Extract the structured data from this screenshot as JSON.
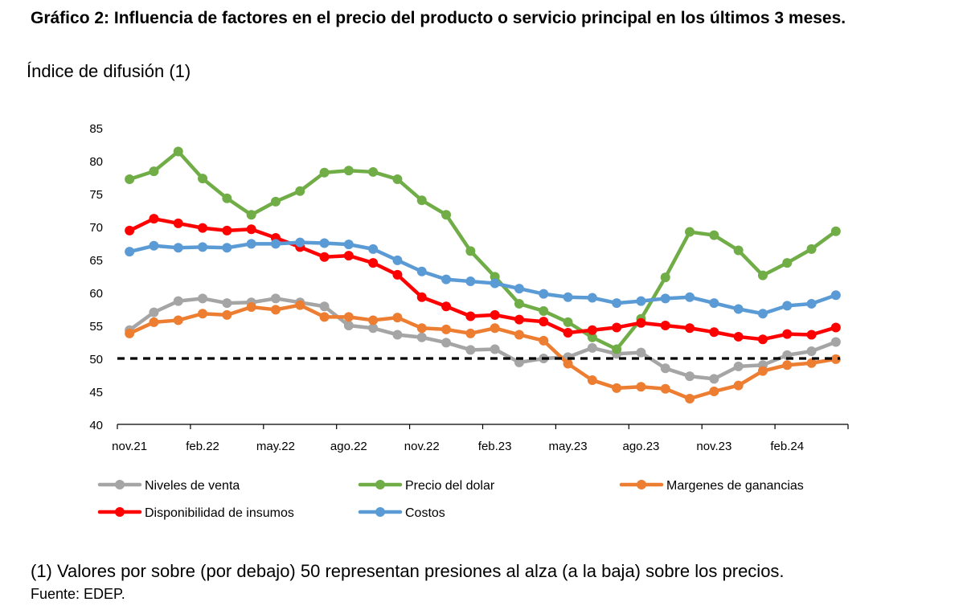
{
  "title": "Gráfico 2: Influencia de factores en el precio del producto o servicio principal en los últimos 3 meses.",
  "subtitle": "Índice de difusión (1)",
  "note": "(1) Valores por sobre (por debajo) 50 representan presiones al alza (a la baja) sobre los precios.",
  "source": "Fuente: EDEP.",
  "chart_data": {
    "type": "line",
    "title": "Gráfico 2: Influencia de factores en el precio del producto o servicio principal en los últimos 3 meses.",
    "ylabel": "Índice de difusión (1)",
    "xlabel": "",
    "ylim": [
      40,
      85
    ],
    "yticks": [
      40,
      45,
      50,
      55,
      60,
      65,
      70,
      75,
      80,
      85
    ],
    "x": [
      "nov.21",
      "dic.21",
      "ene.22",
      "feb.22",
      "mar.22",
      "abr.22",
      "may.22",
      "jun.22",
      "jul.22",
      "ago.22",
      "sep.22",
      "oct.22",
      "nov.22",
      "dic.22",
      "ene.23",
      "feb.23",
      "mar.23",
      "abr.23",
      "may.23",
      "jun.23",
      "jul.23",
      "ago.23",
      "sep.23",
      "oct.23",
      "nov.23",
      "dic.23",
      "ene.24",
      "feb.24",
      "mar.24",
      "abr.24"
    ],
    "xtick_labels": [
      {
        "index": 0,
        "label": "nov.21"
      },
      {
        "index": 3,
        "label": "feb.22"
      },
      {
        "index": 6,
        "label": "may.22"
      },
      {
        "index": 9,
        "label": "ago.22"
      },
      {
        "index": 12,
        "label": "nov.22"
      },
      {
        "index": 15,
        "label": "feb.23"
      },
      {
        "index": 18,
        "label": "may.23"
      },
      {
        "index": 21,
        "label": "ago.23"
      },
      {
        "index": 24,
        "label": "nov.23"
      },
      {
        "index": 27,
        "label": "feb.24"
      }
    ],
    "reference_line": {
      "value": 50,
      "style": "dashed",
      "color": "#000000"
    },
    "grid": false,
    "legend_position": "bottom",
    "series": [
      {
        "name": "Niveles de venta",
        "color": "#a5a5a5",
        "values": [
          54.3,
          57.0,
          58.7,
          59.1,
          58.4,
          58.5,
          59.1,
          58.5,
          57.9,
          55.0,
          54.6,
          53.6,
          53.2,
          52.4,
          51.3,
          51.4,
          49.4,
          50.0,
          50.2,
          51.6,
          50.7,
          50.9,
          48.5,
          47.3,
          46.9,
          48.8,
          49.0,
          50.5,
          51.1,
          52.5
        ]
      },
      {
        "name": "Precio del dolar",
        "color": "#70ad47",
        "values": [
          77.2,
          78.4,
          81.4,
          77.3,
          74.3,
          71.8,
          73.8,
          75.4,
          78.2,
          78.5,
          78.3,
          77.2,
          74.0,
          71.8,
          66.3,
          62.4,
          58.3,
          57.2,
          55.5,
          53.2,
          51.4,
          56.0,
          62.3,
          69.2,
          68.7,
          66.4,
          62.6,
          64.5,
          66.6,
          69.3
        ]
      },
      {
        "name": "Margenes de ganancias",
        "color": "#ed7d31",
        "values": [
          53.8,
          55.5,
          55.8,
          56.8,
          56.6,
          57.8,
          57.4,
          58.1,
          56.3,
          56.3,
          55.8,
          56.2,
          54.6,
          54.4,
          53.8,
          54.6,
          53.6,
          52.7,
          49.2,
          46.7,
          45.5,
          45.7,
          45.4,
          43.9,
          45.0,
          45.9,
          48.1,
          49.0,
          49.3,
          49.9
        ]
      },
      {
        "name": "Disponibilidad de insumos",
        "color": "#ff0000",
        "values": [
          69.4,
          71.2,
          70.5,
          69.8,
          69.4,
          69.6,
          68.3,
          66.9,
          65.4,
          65.6,
          64.5,
          62.7,
          59.3,
          57.9,
          56.4,
          56.6,
          55.9,
          55.6,
          53.9,
          54.3,
          54.7,
          55.4,
          55.0,
          54.6,
          54.0,
          53.3,
          52.9,
          53.7,
          53.6,
          54.7
        ]
      },
      {
        "name": "Costos",
        "color": "#5b9bd5",
        "values": [
          66.2,
          67.1,
          66.8,
          66.9,
          66.8,
          67.4,
          67.4,
          67.6,
          67.5,
          67.3,
          66.6,
          64.9,
          63.2,
          62.0,
          61.7,
          61.4,
          60.6,
          59.8,
          59.3,
          59.2,
          58.4,
          58.7,
          59.1,
          59.3,
          58.4,
          57.5,
          56.8,
          58.0,
          58.3,
          59.6
        ]
      }
    ]
  }
}
